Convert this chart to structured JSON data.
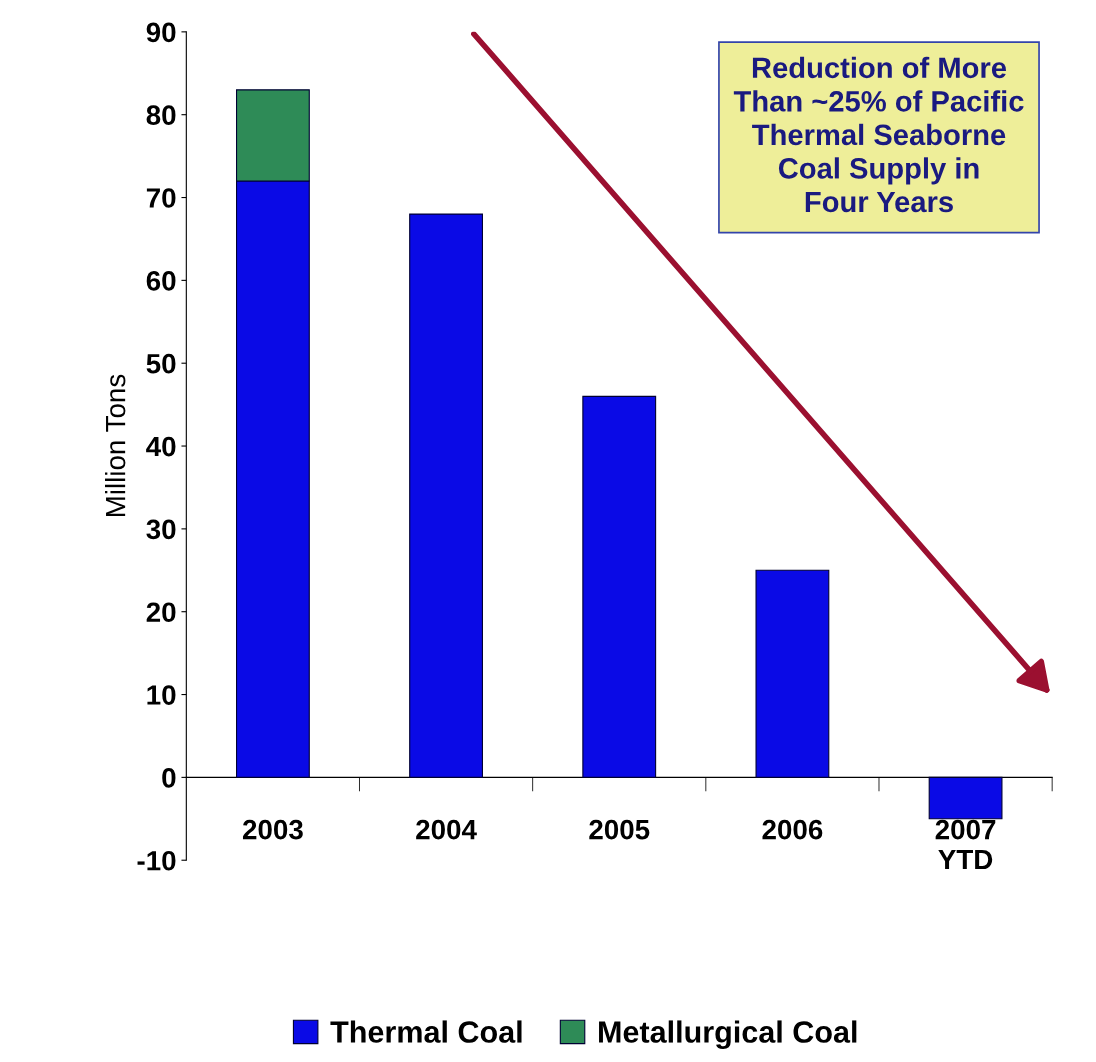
{
  "chart_data": {
    "type": "bar",
    "stacked": true,
    "categories": [
      "2003",
      "2004",
      "2005",
      "2006",
      "2007\nYTD"
    ],
    "series": [
      {
        "name": "Thermal Coal",
        "color": "#0a0ae6",
        "values": [
          72,
          68,
          46,
          25,
          -5
        ]
      },
      {
        "name": "Metallurgical Coal",
        "color": "#2e8b57",
        "values": [
          11,
          null,
          null,
          null,
          null
        ]
      }
    ],
    "ylabel": "Million Tons",
    "ylim": [
      -10,
      90
    ],
    "yticks": [
      -10,
      0,
      10,
      20,
      30,
      40,
      50,
      60,
      70,
      80,
      90
    ],
    "annotations": [
      "Reduction of More\nThan ~25% of Pacific\nThermal Seaborne\nCoal Supply in\nFour Years"
    ],
    "legend": "bottom",
    "grid": false
  }
}
